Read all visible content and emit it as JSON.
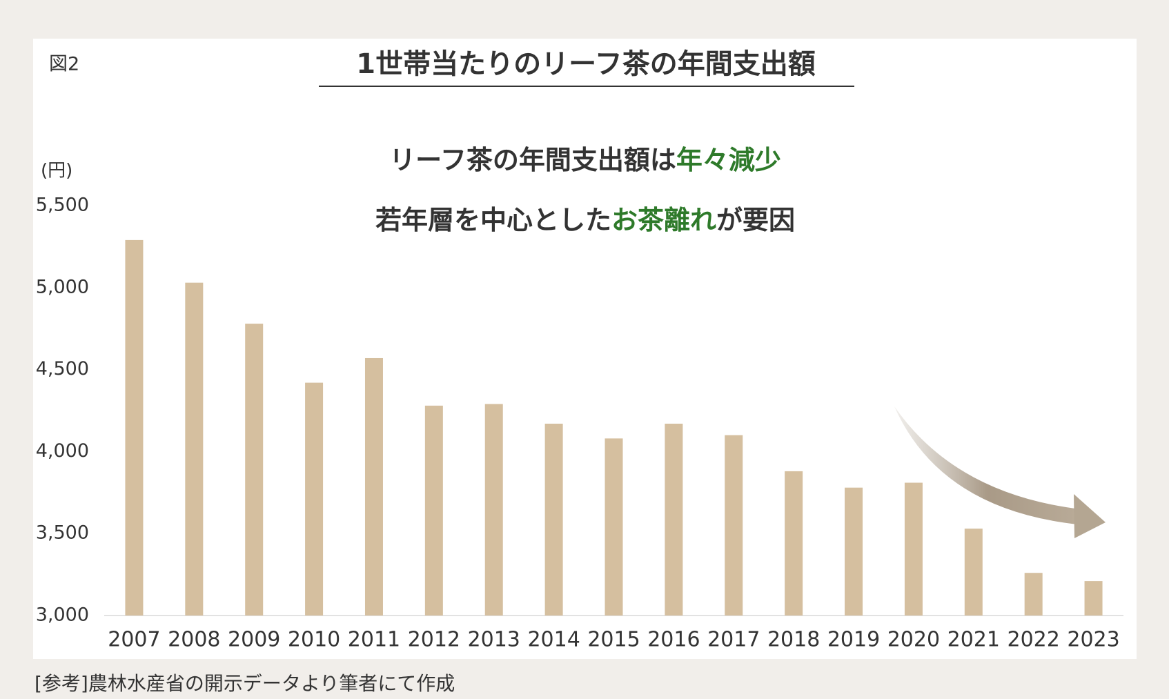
{
  "chart_data": {
    "type": "bar",
    "figure_label": "図2",
    "title": "1世帯当たりのリーフ茶の年間支出額",
    "y_label": "(円)",
    "annotations": [
      [
        {
          "text": "リーフ茶の年間支出額は",
          "color": "#333333"
        },
        {
          "text": "年々減少",
          "color": "#2e7a2a"
        }
      ],
      [
        {
          "text": "若年層を中心とした",
          "color": "#333333"
        },
        {
          "text": "お茶離れ",
          "color": "#2e7a2a"
        },
        {
          "text": "が要因",
          "color": "#333333"
        }
      ]
    ],
    "source": "[参考]農林水産省の開示データより筆者にて作成",
    "categories": [
      "2007",
      "2008",
      "2009",
      "2010",
      "2011",
      "2012",
      "2013",
      "2014",
      "2015",
      "2016",
      "2017",
      "2018",
      "2019",
      "2020",
      "2021",
      "2022",
      "2023"
    ],
    "values": [
      5290,
      5030,
      4780,
      4420,
      4570,
      4280,
      4290,
      4170,
      4080,
      4170,
      4100,
      3880,
      3780,
      3810,
      3530,
      3260,
      3210
    ],
    "color": "#d5bf9f",
    "ylim": [
      3000,
      5500
    ],
    "yticks": [
      {
        "value": 3000,
        "label": "3,000"
      },
      {
        "value": 3500,
        "label": "3,500"
      },
      {
        "value": 4000,
        "label": "4,000"
      },
      {
        "value": 4500,
        "label": "4,500"
      },
      {
        "value": 5000,
        "label": "5,000"
      },
      {
        "value": 5500,
        "label": "5,500"
      }
    ],
    "grid": false
  }
}
